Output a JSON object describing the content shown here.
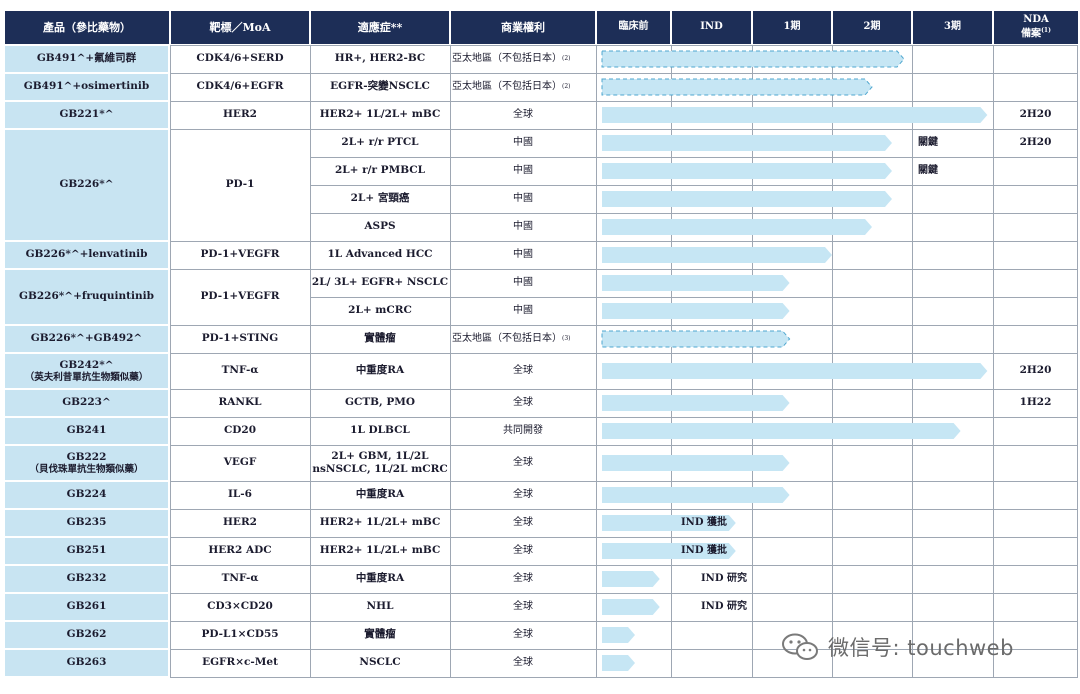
{
  "header": {
    "product": "產品（參比藥物）",
    "target": "靶標／MoA",
    "indication": "適應症**",
    "rights": "商業權利",
    "phases": [
      "臨床前",
      "IND",
      "1期",
      "2期",
      "3期"
    ],
    "nda_line1": "NDA",
    "nda_line2": "備案",
    "nda_sup": "(1)"
  },
  "products": [
    {
      "name": "GB491^+氟維司群",
      "target": "CDK4/6+SERD"
    },
    {
      "name": "GB491^+osimertinib",
      "target": "CDK4/6+EGFR"
    },
    {
      "name": "GB221*^",
      "target": "HER2"
    },
    {
      "name": "GB226*^",
      "target": "PD-1"
    },
    {
      "name": "GB226*^+lenvatinib",
      "target": "PD-1+VEGFR"
    },
    {
      "name": "GB226*^+fruquintinib",
      "target": "PD-1+VEGFR"
    },
    {
      "name": "GB226*^+GB492^",
      "target": "PD-1+STING"
    },
    {
      "name": "GB242*^",
      "name2": "（英夫利昔單抗生物類似藥）",
      "target": "TNF-α"
    },
    {
      "name": "GB223^",
      "target": "RANKL"
    },
    {
      "name": "GB241",
      "target": "CD20"
    },
    {
      "name": "GB222",
      "name2": "（貝伐珠單抗生物類似藥）",
      "target": "VEGF"
    },
    {
      "name": "GB224",
      "target": "IL-6"
    },
    {
      "name": "GB235",
      "target": "HER2"
    },
    {
      "name": "GB251",
      "target": "HER2 ADC"
    },
    {
      "name": "GB232",
      "target": "TNF-α"
    },
    {
      "name": "GB261",
      "target": "CD3×CD20"
    },
    {
      "name": "GB262",
      "target": "PD-L1×CD55"
    },
    {
      "name": "GB263",
      "target": "EGFR×c-Met"
    }
  ],
  "rows": [
    {
      "indication": "HR+, HER2-BC",
      "rights": "亞太地區（不包括日本）",
      "rights_sup": "(2)",
      "progress": 3.9,
      "style": "dashed",
      "nda": "",
      "note": ""
    },
    {
      "indication": "EGFR-突變NSCLC",
      "rights": "亞太地區（不包括日本）",
      "rights_sup": "(2)",
      "progress": 3.5,
      "style": "dashed",
      "nda": "",
      "note": ""
    },
    {
      "indication": "HER2+ 1L/2L+ mBC",
      "rights": "全球",
      "progress": 4.93,
      "style": "solid",
      "nda": "2H20",
      "note": ""
    },
    {
      "indication": "2L+ r/r PTCL",
      "rights": "中國",
      "progress": 3.75,
      "style": "solid",
      "nda": "2H20",
      "note": "關鍵"
    },
    {
      "indication": "2L+ r/r PMBCL",
      "rights": "中國",
      "progress": 3.75,
      "style": "solid",
      "nda": "",
      "note": "關鍵"
    },
    {
      "indication": "2L+ 宮頸癌",
      "rights": "中國",
      "progress": 3.75,
      "style": "solid",
      "nda": "",
      "note": ""
    },
    {
      "indication": "ASPS",
      "rights": "中國",
      "progress": 3.5,
      "style": "solid",
      "nda": "",
      "note": ""
    },
    {
      "indication": "1L Advanced HCC",
      "rights": "中國",
      "progress": 3.0,
      "style": "solid",
      "nda": "",
      "note": ""
    },
    {
      "indication": "2L/ 3L+ EGFR+ NSCLC",
      "rights": "中國",
      "progress": 2.47,
      "style": "solid",
      "nda": "",
      "note": ""
    },
    {
      "indication": "2L+ mCRC",
      "rights": "中國",
      "progress": 2.47,
      "style": "solid",
      "nda": "",
      "note": ""
    },
    {
      "indication": "實體瘤",
      "rights": "亞太地區（不包括日本）",
      "rights_sup": "(3)",
      "progress": 2.47,
      "style": "dashed",
      "nda": "",
      "note": ""
    },
    {
      "indication": "中重度RA",
      "rights": "全球",
      "progress": 4.93,
      "style": "solid",
      "nda": "2H20",
      "note": ""
    },
    {
      "indication": "GCTB, PMO",
      "rights": "全球",
      "progress": 2.47,
      "style": "solid",
      "nda": "1H22",
      "note": ""
    },
    {
      "indication": "1L DLBCL",
      "rights": "共同開發",
      "progress": 4.6,
      "style": "solid",
      "nda": "",
      "note": ""
    },
    {
      "indication": "2L+ GBM, 1L/2L",
      "indication2": "nsNSCLC, 1L/2L mCRC",
      "rights": "全球",
      "progress": 2.47,
      "style": "solid",
      "nda": "",
      "note": ""
    },
    {
      "indication": "中重度RA",
      "rights": "全球",
      "progress": 2.47,
      "style": "solid",
      "nda": "",
      "note": ""
    },
    {
      "indication": "HER2+ 1L/2L+ mBC",
      "rights": "全球",
      "progress": 1.8,
      "style": "solid",
      "nda": "",
      "note": "IND 獲批"
    },
    {
      "indication": "HER2+ 1L/2L+ mBC",
      "rights": "全球",
      "progress": 1.8,
      "style": "solid",
      "nda": "",
      "note": "IND 獲批"
    },
    {
      "indication": "中重度RA",
      "rights": "全球",
      "progress": 0.85,
      "style": "solid",
      "nda": "",
      "note": "IND 研究"
    },
    {
      "indication": "NHL",
      "rights": "全球",
      "progress": 0.85,
      "style": "solid",
      "nda": "",
      "note": "IND 研究"
    },
    {
      "indication": "實體瘤",
      "rights": "全球",
      "progress": 0.52,
      "style": "solid",
      "nda": "",
      "note": ""
    },
    {
      "indication": "NSCLC",
      "rights": "全球",
      "progress": 0.52,
      "style": "solid",
      "nda": "",
      "note": ""
    }
  ],
  "colors": {
    "header_bg": "#1d2e57",
    "product_bg": "#c8e4f2",
    "bar_fill": "#c6e6f4",
    "bar_border": "#4fa7cf"
  },
  "watermark": "微信号: touchweb"
}
